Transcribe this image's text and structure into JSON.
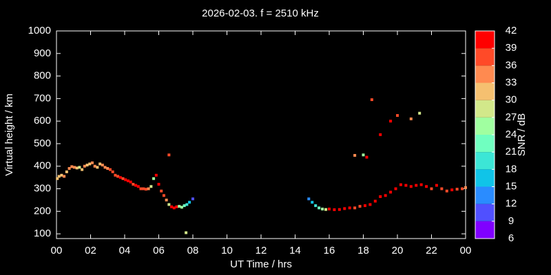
{
  "chart_data": {
    "type": "scatter",
    "title": "2026-02-03. f = 2510 kHz",
    "x_label": "UT Time / hrs",
    "y_label": "Virtual height / km",
    "xlim": [
      0,
      24
    ],
    "ylim": [
      79,
      1000
    ],
    "xticks": [
      {
        "value": 0,
        "label": "00"
      },
      {
        "value": 2,
        "label": "02"
      },
      {
        "value": 4,
        "label": "04"
      },
      {
        "value": 6,
        "label": "06"
      },
      {
        "value": 8,
        "label": "08"
      },
      10,
      12,
      14,
      16,
      18,
      20,
      22,
      {
        "value": 24,
        "label": "00"
      }
    ],
    "yticks": [
      100,
      200,
      300,
      400,
      500,
      600,
      700,
      800,
      900,
      1000
    ],
    "colorbar": {
      "label": "SNR / dB",
      "lim": [
        6,
        42
      ],
      "ticks": [
        6,
        9,
        12,
        15,
        18,
        21,
        24,
        27,
        30,
        33,
        36,
        39,
        42
      ],
      "colors": [
        "#8000ff",
        "#5050ff",
        "#2a8cff",
        "#10c4e8",
        "#3ce6d6",
        "#70ffc0",
        "#a0ffa0",
        "#d2e88a",
        "#f5c070",
        "#ff8a50",
        "#ff4a28",
        "#ff0000"
      ]
    },
    "series": [
      {
        "x": [
          0.05,
          0.15,
          0.3,
          0.45,
          0.6,
          0.75,
          0.9,
          1.05,
          1.2,
          1.35,
          1.5,
          1.65,
          1.8,
          1.95,
          2.1,
          2.25,
          2.4,
          2.55,
          2.7,
          2.85,
          3.0,
          3.15,
          3.3,
          3.45,
          3.6,
          3.75,
          3.9,
          4.05,
          4.2,
          4.35,
          4.5,
          4.65,
          4.8,
          4.95,
          5.1,
          5.25,
          5.4,
          5.55,
          5.7,
          5.85,
          6.0,
          6.15,
          6.3,
          6.45,
          6.6,
          6.75,
          6.9,
          7.05,
          7.2,
          7.35,
          7.5,
          7.65,
          7.8,
          8.0,
          6.6,
          7.6,
          14.8,
          15.0,
          15.2,
          15.4,
          15.6,
          15.8,
          16.0,
          16.3,
          16.6,
          16.9,
          17.2,
          17.5,
          17.8,
          18.1,
          18.4,
          18.7,
          19.0,
          19.3,
          19.6,
          19.9,
          20.2,
          20.5,
          20.8,
          21.1,
          21.4,
          21.7,
          22.0,
          22.3,
          22.6,
          22.9,
          23.2,
          23.5,
          23.8,
          24.0,
          18.5,
          20.0,
          20.8,
          21.3,
          19.0,
          19.6,
          17.5,
          18.0,
          18.2
        ],
        "y": [
          345,
          355,
          360,
          355,
          375,
          390,
          398,
          395,
          392,
          395,
          385,
          400,
          405,
          410,
          415,
          400,
          395,
          410,
          405,
          395,
          390,
          385,
          375,
          360,
          355,
          350,
          345,
          340,
          335,
          330,
          320,
          315,
          310,
          300,
          300,
          298,
          300,
          310,
          345,
          360,
          320,
          290,
          270,
          250,
          230,
          220,
          215,
          220,
          222,
          218,
          225,
          230,
          240,
          255,
          450,
          105,
          255,
          240,
          225,
          215,
          210,
          208,
          210,
          207,
          208,
          212,
          215,
          215,
          222,
          225,
          230,
          245,
          265,
          270,
          285,
          300,
          318,
          315,
          310,
          315,
          318,
          310,
          300,
          315,
          300,
          290,
          295,
          298,
          300,
          305,
          695,
          625,
          610,
          635,
          540,
          600,
          448,
          450,
          440
        ],
        "snr": [
          30,
          30,
          30,
          33,
          30,
          33,
          33,
          33,
          30,
          27,
          30,
          33,
          30,
          30,
          33,
          33,
          30,
          30,
          33,
          33,
          33,
          36,
          36,
          36,
          36,
          39,
          36,
          39,
          42,
          39,
          36,
          39,
          39,
          36,
          36,
          36,
          33,
          27,
          24,
          39,
          39,
          36,
          36,
          33,
          27,
          42,
          42,
          39,
          24,
          24,
          21,
          18,
          15,
          9,
          36,
          27,
          12,
          15,
          18,
          21,
          24,
          27,
          39,
          39,
          39,
          39,
          39,
          36,
          36,
          39,
          39,
          39,
          39,
          39,
          42,
          39,
          39,
          39,
          39,
          39,
          39,
          39,
          36,
          39,
          36,
          36,
          39,
          36,
          36,
          33,
          36,
          36,
          33,
          27,
          39,
          42,
          33,
          24,
          39
        ]
      }
    ]
  }
}
